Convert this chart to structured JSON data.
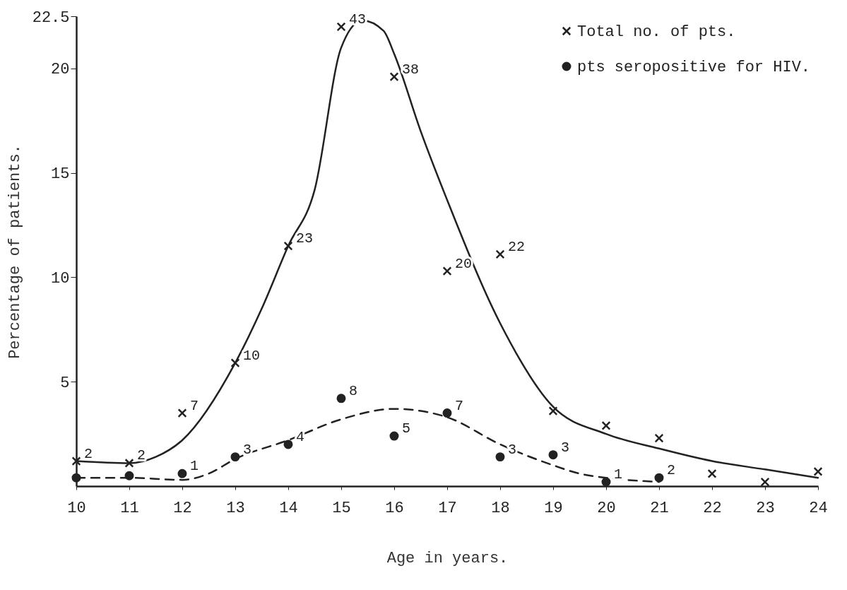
{
  "chart_data": {
    "type": "scatter",
    "xlabel": "Age in years.",
    "ylabel": "Percentage of patients.",
    "xlim": [
      10,
      24
    ],
    "xticks": [
      10,
      11,
      12,
      13,
      14,
      15,
      16,
      17,
      18,
      19,
      20,
      21,
      22,
      23,
      24
    ],
    "ylim": [
      0,
      22.5
    ],
    "yticks": [
      5,
      10,
      15,
      20,
      22.5
    ],
    "grid": false,
    "legend": "top right",
    "series": [
      {
        "name": "Total no. of pts.",
        "type": "scatter",
        "marker": "cross",
        "color": "#222222",
        "x": [
          10,
          11,
          12,
          13,
          14,
          15,
          16,
          17,
          18,
          19,
          20,
          21,
          22,
          23,
          24
        ],
        "values": [
          1.2,
          1.1,
          3.5,
          5.9,
          11.5,
          22.0,
          19.6,
          10.3,
          11.1,
          3.6,
          2.9,
          2.3,
          0.6,
          0.2,
          0.7
        ]
      },
      {
        "type": "line",
        "line_style": "solid",
        "color": "#222222",
        "x": [
          10,
          11,
          11.5,
          12,
          13,
          13.5,
          14,
          14.5,
          15,
          15.4,
          15.8,
          16,
          16.5,
          17,
          18,
          19,
          20,
          21,
          22,
          23,
          24
        ],
        "values": [
          1.2,
          1.1,
          1.4,
          2.2,
          5.9,
          8.5,
          11.5,
          14.2,
          21,
          22.3,
          21.8,
          20.7,
          17,
          13.7,
          7.8,
          3.8,
          2.5,
          1.8,
          1.2,
          0.8,
          0.4
        ]
      },
      {
        "name": "pts seropositive for HIV.",
        "type": "scatter",
        "marker": "circle",
        "color": "#222222",
        "x": [
          10,
          11,
          12,
          13,
          14,
          15,
          16,
          17,
          18,
          19,
          20,
          21
        ],
        "values": [
          0.4,
          0.5,
          0.6,
          1.4,
          2.0,
          4.2,
          2.4,
          3.5,
          1.4,
          1.5,
          0.2,
          0.4
        ]
      },
      {
        "type": "line",
        "line_style": "dashed",
        "color": "#222222",
        "x": [
          10,
          11,
          12,
          12.5,
          13,
          14,
          15,
          16,
          16.5,
          17,
          18,
          19,
          19.5,
          20,
          21
        ],
        "values": [
          0.4,
          0.4,
          0.3,
          0.6,
          1.3,
          2.2,
          3.2,
          3.7,
          3.6,
          3.3,
          2.0,
          1.0,
          0.6,
          0.4,
          0.2
        ]
      }
    ],
    "annotations": [
      {
        "text": "2",
        "x": 10,
        "y": 1.2
      },
      {
        "text": "2",
        "x": 11,
        "y": 1.1
      },
      {
        "text": "7",
        "x": 12,
        "y": 3.5
      },
      {
        "text": "10",
        "x": 13,
        "y": 5.9
      },
      {
        "text": "23",
        "x": 14,
        "y": 11.5
      },
      {
        "text": "43",
        "x": 15,
        "y": 22.0
      },
      {
        "text": "38",
        "x": 16,
        "y": 19.6
      },
      {
        "text": "20",
        "x": 17,
        "y": 10.3
      },
      {
        "text": "22",
        "x": 18,
        "y": 11.1
      },
      {
        "text": "1",
        "x": 12,
        "y": 0.6
      },
      {
        "text": "3",
        "x": 13,
        "y": 1.4
      },
      {
        "text": "4",
        "x": 14,
        "y": 2.0
      },
      {
        "text": "8",
        "x": 15,
        "y": 4.2
      },
      {
        "text": "5",
        "x": 16,
        "y": 2.4
      },
      {
        "text": "7",
        "x": 17,
        "y": 3.5
      },
      {
        "text": "3",
        "x": 18,
        "y": 1.4
      },
      {
        "text": "3",
        "x": 19,
        "y": 1.5
      },
      {
        "text": "1",
        "x": 20,
        "y": 0.2
      },
      {
        "text": "2",
        "x": 21,
        "y": 0.4
      }
    ]
  }
}
